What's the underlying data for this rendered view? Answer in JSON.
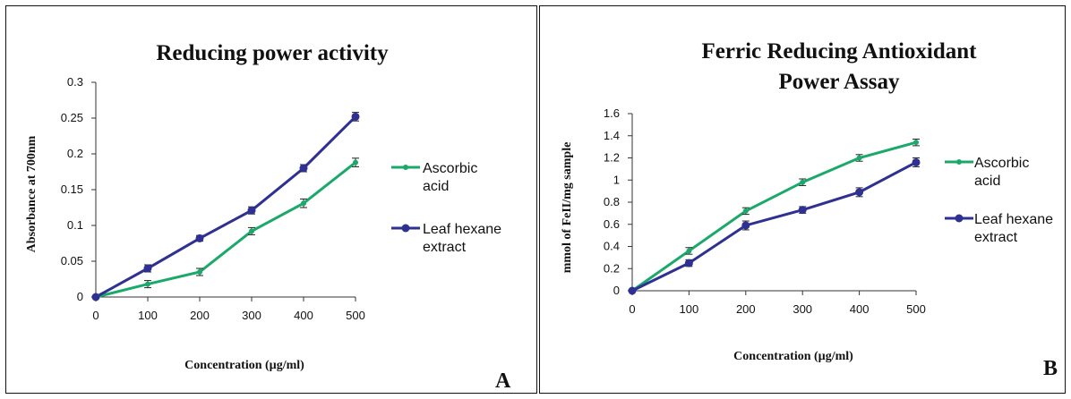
{
  "chart_data": [
    {
      "type": "line",
      "title": "Reducing power activity",
      "xlabel": "Concentration (µg/ml)",
      "ylabel": "Absorbance at 700nm",
      "x": [
        0,
        100,
        200,
        300,
        400,
        500
      ],
      "ylim": [
        0,
        0.3
      ],
      "yticks": [
        "0",
        "0.05",
        "0.1",
        "0.15",
        "0.2",
        "0.25",
        "0.3"
      ],
      "xticks": [
        "0",
        "100",
        "200",
        "300",
        "400",
        "500"
      ],
      "legend_position": "right",
      "grid": false,
      "panel_label": "A",
      "series": [
        {
          "name": "Ascorbic acid",
          "legend_lines": [
            "Ascorbic",
            "acid"
          ],
          "color": "#1aa96a",
          "values": [
            0,
            0.018,
            0.035,
            0.092,
            0.131,
            0.188
          ],
          "errors": [
            0,
            0.005,
            0.005,
            0.005,
            0.006,
            0.006
          ]
        },
        {
          "name": "Leaf hexane extract",
          "legend_lines": [
            "Leaf hexane",
            "extract"
          ],
          "color": "#2e3191",
          "values": [
            0,
            0.04,
            0.082,
            0.121,
            0.18,
            0.252
          ],
          "errors": [
            0,
            0.005,
            0.004,
            0.005,
            0.005,
            0.006
          ]
        }
      ]
    },
    {
      "type": "line",
      "title": "Ferric Reducing Antioxidant Power Assay",
      "title_lines": [
        "Ferric Reducing Antioxidant",
        "Power Assay"
      ],
      "xlabel": "Concentration (µg/ml)",
      "ylabel": "mmol of FeII/mg sample",
      "x": [
        0,
        100,
        200,
        300,
        400,
        500
      ],
      "ylim": [
        0,
        1.6
      ],
      "yticks": [
        "0",
        "0.2",
        "0.4",
        "0.6",
        "0.8",
        "1",
        "1.2",
        "1.4",
        "1.6"
      ],
      "xticks": [
        "0",
        "100",
        "200",
        "300",
        "400",
        "500"
      ],
      "legend_position": "right",
      "grid": false,
      "panel_label": "B",
      "series": [
        {
          "name": "Ascorbic acid",
          "legend_lines": [
            "Ascorbic",
            "acid"
          ],
          "color": "#1aa96a",
          "values": [
            0,
            0.36,
            0.72,
            0.98,
            1.2,
            1.34
          ],
          "errors": [
            0,
            0.03,
            0.03,
            0.03,
            0.03,
            0.03
          ]
        },
        {
          "name": "Leaf hexane extract",
          "legend_lines": [
            "Leaf hexane",
            "extract"
          ],
          "color": "#2e3191",
          "values": [
            0,
            0.25,
            0.59,
            0.73,
            0.89,
            1.16
          ],
          "errors": [
            0,
            0.03,
            0.04,
            0.03,
            0.04,
            0.04
          ]
        }
      ]
    }
  ]
}
